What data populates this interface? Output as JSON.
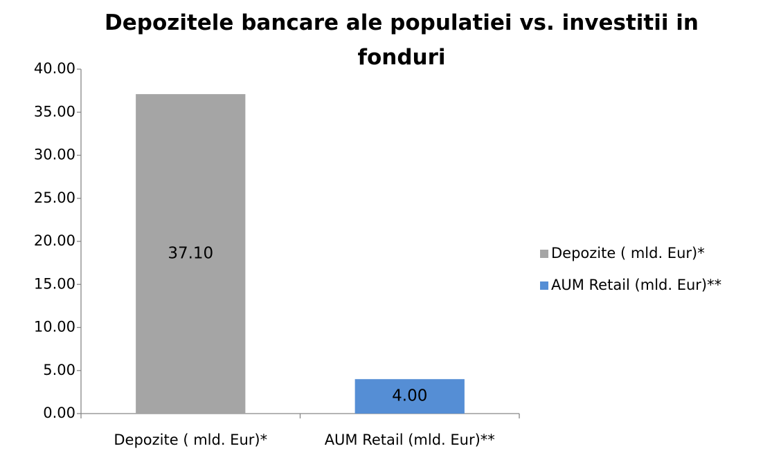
{
  "chart_data": {
    "type": "bar",
    "title": "Depozitele bancare ale populatiei vs. investitii in fonduri",
    "categories": [
      "Depozite ( mld. Eur)*",
      "AUM Retail (mld. Eur)**"
    ],
    "series": [
      {
        "name": "Depozite ( mld. Eur)*",
        "color": "#a5a5a5",
        "values": [
          37.1,
          null
        ],
        "value_labels": [
          "37.10",
          null
        ]
      },
      {
        "name": "AUM Retail (mld. Eur)**",
        "color": "#558ed5",
        "values": [
          null,
          4
        ],
        "value_labels": [
          null,
          "4.00"
        ]
      }
    ],
    "ylim": [
      0,
      40
    ],
    "yticks": [
      {
        "value": 0,
        "label": "0.00"
      },
      {
        "value": 5,
        "label": "5.00"
      },
      {
        "value": 10,
        "label": "10.00"
      },
      {
        "value": 15,
        "label": "15.00"
      },
      {
        "value": 20,
        "label": "20.00"
      },
      {
        "value": 25,
        "label": "25.00"
      },
      {
        "value": 30,
        "label": "30.00"
      },
      {
        "value": 35,
        "label": "35.00"
      },
      {
        "value": 40,
        "label": "40.00"
      }
    ],
    "grid": false,
    "legend": "right"
  }
}
